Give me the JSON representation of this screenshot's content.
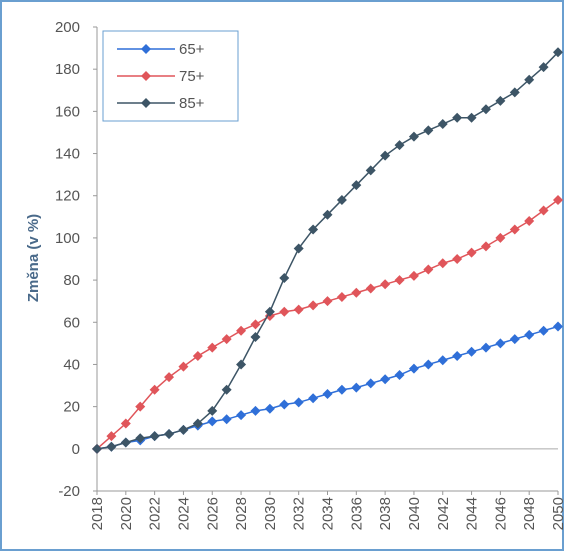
{
  "chart_data": {
    "type": "line",
    "y_label": "Změna (v %)",
    "x": [
      2018,
      2019,
      2020,
      2021,
      2022,
      2023,
      2024,
      2025,
      2026,
      2027,
      2028,
      2029,
      2030,
      2031,
      2032,
      2033,
      2034,
      2035,
      2036,
      2037,
      2038,
      2039,
      2040,
      2041,
      2042,
      2043,
      2044,
      2045,
      2046,
      2047,
      2048,
      2049,
      2050
    ],
    "xlim": [
      2018,
      2050
    ],
    "xticks": [
      2018,
      2020,
      2022,
      2024,
      2026,
      2028,
      2030,
      2032,
      2034,
      2036,
      2038,
      2040,
      2042,
      2044,
      2046,
      2048,
      2050
    ],
    "ylim": [
      -20,
      200
    ],
    "yticks": [
      -20,
      0,
      20,
      40,
      60,
      80,
      100,
      120,
      140,
      160,
      180,
      200
    ],
    "legend": "top-left",
    "series": [
      {
        "name": "65+",
        "color": "#2f6fd8",
        "values": [
          0,
          1,
          3,
          4,
          6,
          7,
          9,
          11,
          13,
          14,
          16,
          18,
          19,
          21,
          22,
          24,
          26,
          28,
          29,
          31,
          33,
          35,
          38,
          40,
          42,
          44,
          46,
          48,
          50,
          52,
          54,
          56,
          58
        ]
      },
      {
        "name": "75+",
        "color": "#e0555a",
        "values": [
          0,
          6,
          12,
          20,
          28,
          34,
          39,
          44,
          48,
          52,
          56,
          59,
          63,
          65,
          66,
          68,
          70,
          72,
          74,
          76,
          78,
          80,
          82,
          85,
          88,
          90,
          93,
          96,
          100,
          104,
          108,
          113,
          118
        ]
      },
      {
        "name": "85+",
        "color": "#3d5566",
        "values": [
          0,
          1,
          3,
          5,
          6,
          7,
          9,
          12,
          18,
          28,
          40,
          53,
          65,
          81,
          95,
          104,
          111,
          118,
          125,
          132,
          139,
          144,
          148,
          151,
          154,
          157,
          157,
          161,
          165,
          169,
          175,
          181,
          188
        ]
      }
    ]
  }
}
